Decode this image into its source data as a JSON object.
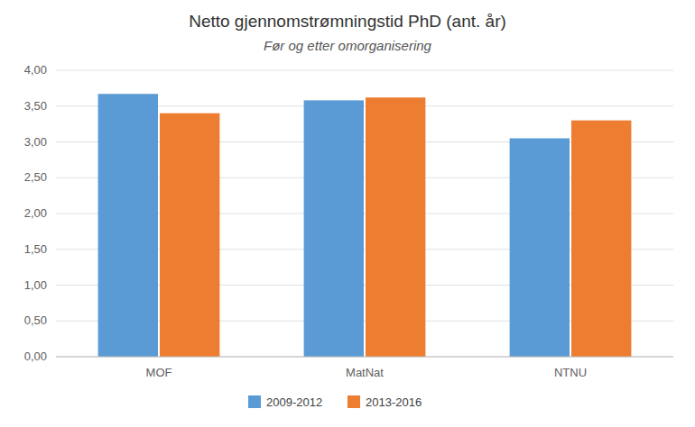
{
  "chart_data": {
    "type": "bar",
    "title": "Netto gjennomstrømningstid PhD (ant. år)",
    "subtitle": "Før og etter omorganisering",
    "categories": [
      "MOF",
      "MatNat",
      "NTNU"
    ],
    "series": [
      {
        "name": "2009-2012",
        "color": "#5B9BD5",
        "values": [
          3.67,
          3.58,
          3.05
        ]
      },
      {
        "name": "2013-2016",
        "color": "#ED7D31",
        "values": [
          3.4,
          3.62,
          3.3
        ]
      }
    ],
    "ylim": [
      0,
      4.0
    ],
    "yticks": [
      {
        "value": 0.0,
        "label": "0,00"
      },
      {
        "value": 0.5,
        "label": "0,50"
      },
      {
        "value": 1.0,
        "label": "1,00"
      },
      {
        "value": 1.5,
        "label": "1,50"
      },
      {
        "value": 2.0,
        "label": "2,00"
      },
      {
        "value": 2.5,
        "label": "2,50"
      },
      {
        "value": 3.0,
        "label": "3,00"
      },
      {
        "value": 3.5,
        "label": "3,50"
      },
      {
        "value": 4.0,
        "label": "4,00"
      }
    ],
    "grid": true,
    "legend": "bottom"
  }
}
